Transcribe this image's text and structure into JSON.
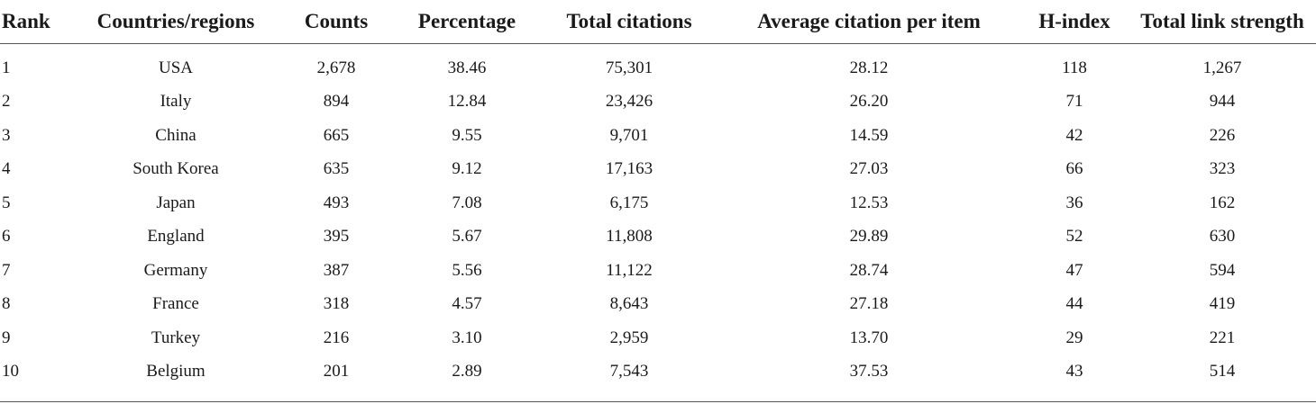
{
  "table": {
    "headers": [
      "Rank",
      "Countries/regions",
      "Counts",
      "Percentage",
      "Total citations",
      "Average citation per item",
      "H-index",
      "Total link strength"
    ],
    "rows": [
      [
        "1",
        "USA",
        "2,678",
        "38.46",
        "75,301",
        "28.12",
        "118",
        "1,267"
      ],
      [
        "2",
        "Italy",
        "894",
        "12.84",
        "23,426",
        "26.20",
        "71",
        "944"
      ],
      [
        "3",
        "China",
        "665",
        "9.55",
        "9,701",
        "14.59",
        "42",
        "226"
      ],
      [
        "4",
        "South Korea",
        "635",
        "9.12",
        "17,163",
        "27.03",
        "66",
        "323"
      ],
      [
        "5",
        "Japan",
        "493",
        "7.08",
        "6,175",
        "12.53",
        "36",
        "162"
      ],
      [
        "6",
        "England",
        "395",
        "5.67",
        "11,808",
        "29.89",
        "52",
        "630"
      ],
      [
        "7",
        "Germany",
        "387",
        "5.56",
        "11,122",
        "28.74",
        "47",
        "594"
      ],
      [
        "8",
        "France",
        "318",
        "4.57",
        "8,643",
        "27.18",
        "44",
        "419"
      ],
      [
        "9",
        "Turkey",
        "216",
        "3.10",
        "2,959",
        "13.70",
        "29",
        "221"
      ],
      [
        "10",
        "Belgium",
        "201",
        "2.89",
        "7,543",
        "37.53",
        "43",
        "514"
      ]
    ]
  }
}
